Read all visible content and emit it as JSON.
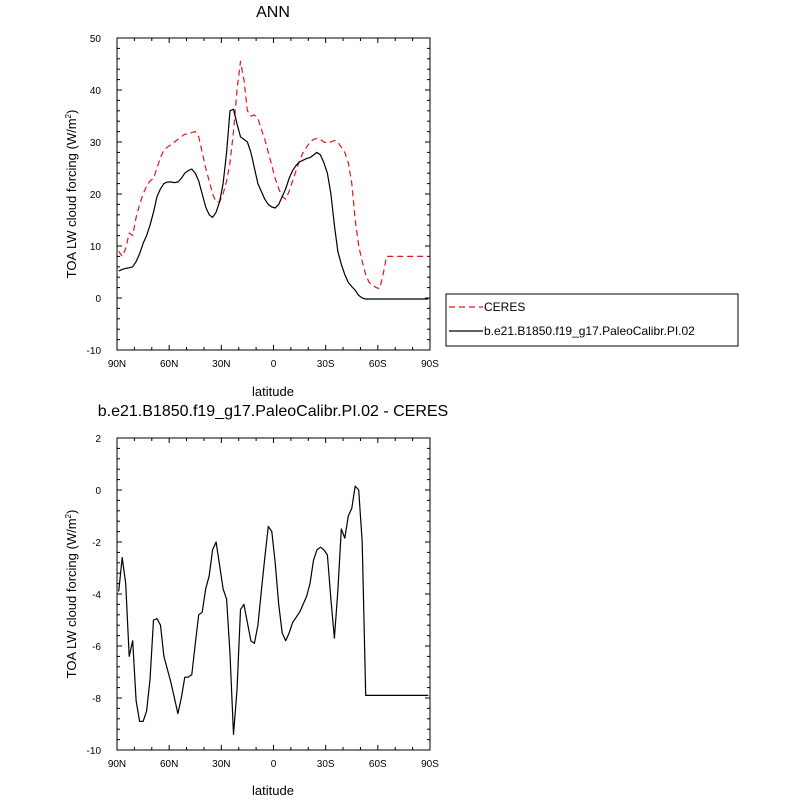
{
  "chart_data": [
    {
      "type": "line",
      "title": "ANN",
      "xlabel": "latitude",
      "ylabel": "TOA LW cloud forcing (W/m",
      "ylabel_sup": "2",
      "ylabel_close": ")",
      "xlim": [
        90,
        -90
      ],
      "ylim": [
        -10,
        50
      ],
      "x_ticks": [
        {
          "v": 90,
          "label": "90N"
        },
        {
          "v": 60,
          "label": "60N"
        },
        {
          "v": 30,
          "label": "30N"
        },
        {
          "v": 0,
          "label": "0"
        },
        {
          "v": -30,
          "label": "30S"
        },
        {
          "v": -60,
          "label": "60S"
        },
        {
          "v": -90,
          "label": "90S"
        }
      ],
      "y_ticks": [
        -10,
        0,
        10,
        20,
        30,
        40,
        50
      ],
      "legend": {
        "placement": "right"
      },
      "series": [
        {
          "name": "CERES",
          "color": "#e8141b",
          "style": "dashed",
          "x": [
            89,
            87,
            85,
            83,
            81,
            79,
            77,
            75,
            73,
            71,
            69,
            67,
            65,
            63,
            61,
            59,
            57,
            55,
            53,
            51,
            49,
            47,
            45,
            43,
            41,
            39,
            37,
            35,
            33,
            31,
            29,
            27,
            25,
            23,
            21,
            19,
            17,
            15,
            13,
            11,
            9,
            7,
            5,
            3,
            1,
            -1,
            -3,
            -5,
            -7,
            -9,
            -11,
            -13,
            -15,
            -17,
            -19,
            -21,
            -23,
            -25,
            -27,
            -29,
            -31,
            -33,
            -35,
            -37,
            -39,
            -41,
            -43,
            -45,
            -47,
            -49,
            -51,
            -53,
            -55,
            -57,
            -59,
            -61,
            -63,
            -65,
            -67,
            -69,
            -71,
            -73,
            -75,
            -77,
            -79,
            -81,
            -83,
            -85,
            -87,
            -89
          ],
          "y": [
            9.0,
            8.0,
            9.5,
            12.5,
            12.0,
            15.5,
            18.0,
            20.0,
            21.5,
            22.5,
            23.0,
            25.0,
            27.0,
            28.5,
            29.0,
            29.5,
            30.0,
            30.5,
            31.0,
            31.5,
            31.5,
            31.8,
            32.0,
            31.0,
            28.0,
            25.0,
            22.5,
            20.0,
            18.5,
            18.5,
            20.0,
            22.5,
            26.0,
            32.0,
            40.0,
            45.5,
            42.0,
            36.0,
            35.0,
            35.2,
            34.5,
            32.5,
            30.5,
            28.0,
            25.5,
            23.0,
            21.0,
            19.5,
            19.0,
            20.5,
            22.5,
            24.5,
            26.5,
            28.0,
            29.0,
            30.0,
            30.5,
            30.7,
            30.5,
            30.0,
            29.8,
            30.0,
            30.3,
            30.0,
            29.0,
            28.0,
            26.0,
            22.0,
            15.0,
            10.0,
            7.0,
            4.5,
            3.0,
            2.5,
            2.0,
            1.8,
            4.5,
            8.0,
            8.0,
            8.0,
            8.0,
            8.0,
            8.0,
            8.0,
            8.0,
            8.0,
            8.0,
            8.0,
            8.0,
            8.0
          ]
        },
        {
          "name": "b.e21.B1850.f19_g17.PaleoCalibr.PI.02",
          "color": "#000000",
          "style": "solid",
          "x": [
            89,
            87,
            85,
            83,
            81,
            79,
            77,
            75,
            73,
            71,
            69,
            67,
            65,
            63,
            61,
            59,
            57,
            55,
            53,
            51,
            49,
            47,
            45,
            43,
            41,
            39,
            37,
            35,
            33,
            31,
            29,
            27,
            25,
            23,
            21,
            19,
            17,
            15,
            13,
            11,
            9,
            7,
            5,
            3,
            1,
            -1,
            -3,
            -5,
            -7,
            -9,
            -11,
            -13,
            -15,
            -17,
            -19,
            -21,
            -23,
            -25,
            -27,
            -29,
            -31,
            -33,
            -35,
            -37,
            -39,
            -41,
            -43,
            -45,
            -47,
            -49,
            -51,
            -53,
            -55,
            -57,
            -59,
            -61,
            -63,
            -65,
            -67,
            -69,
            -71,
            -73,
            -75,
            -77,
            -79,
            -81,
            -83,
            -85,
            -87,
            -89
          ],
          "y": [
            5.2,
            5.5,
            5.7,
            5.8,
            6.0,
            7.0,
            8.5,
            10.5,
            12.0,
            14.0,
            16.5,
            19.5,
            21.0,
            22.0,
            22.3,
            22.3,
            22.2,
            22.3,
            23.0,
            24.0,
            24.5,
            24.8,
            24.0,
            22.5,
            20.0,
            17.5,
            16.0,
            15.5,
            16.5,
            18.5,
            22.0,
            28.0,
            36.0,
            36.3,
            33.5,
            31.0,
            30.5,
            30.0,
            28.0,
            25.0,
            22.0,
            20.5,
            19.0,
            18.0,
            17.5,
            17.3,
            18.0,
            19.5,
            21.0,
            23.0,
            24.5,
            25.5,
            26.2,
            26.5,
            26.8,
            27.0,
            27.5,
            28.0,
            27.5,
            26.0,
            24.0,
            20.0,
            14.0,
            9.0,
            6.5,
            4.5,
            3.0,
            2.2,
            1.5,
            0.5,
            0.0,
            -0.2,
            -0.2,
            -0.2,
            -0.2,
            -0.2,
            -0.2,
            -0.2,
            -0.2,
            -0.2,
            -0.2,
            -0.2,
            -0.2,
            -0.2,
            -0.2,
            -0.2,
            -0.2,
            -0.2,
            -0.2,
            -0.2
          ]
        }
      ]
    },
    {
      "type": "line",
      "title": "b.e21.B1850.f19_g17.PaleoCalibr.PI.02 - CERES",
      "xlabel": "latitude",
      "ylabel": "TOA LW cloud forcing (W/m",
      "ylabel_sup": "2",
      "ylabel_close": ")",
      "xlim": [
        90,
        -90
      ],
      "ylim": [
        -10,
        2
      ],
      "x_ticks": [
        {
          "v": 90,
          "label": "90N"
        },
        {
          "v": 60,
          "label": "60N"
        },
        {
          "v": 30,
          "label": "30N"
        },
        {
          "v": 0,
          "label": "0"
        },
        {
          "v": -30,
          "label": "30S"
        },
        {
          "v": -60,
          "label": "60S"
        },
        {
          "v": -90,
          "label": "90S"
        }
      ],
      "y_ticks": [
        -10,
        -8,
        -6,
        -4,
        -2,
        0,
        2
      ],
      "series": [
        {
          "color": "#000000",
          "style": "solid",
          "x": [
            89,
            87,
            85,
            83,
            81,
            79,
            77,
            75,
            73,
            71,
            69,
            67,
            65,
            63,
            61,
            59,
            57,
            55,
            53,
            51,
            49,
            47,
            45,
            43,
            41,
            39,
            37,
            35,
            33,
            31,
            29,
            27,
            25,
            23,
            21,
            19,
            17,
            15,
            13,
            11,
            9,
            7,
            5,
            3,
            1,
            -1,
            -3,
            -5,
            -7,
            -9,
            -11,
            -13,
            -15,
            -17,
            -19,
            -21,
            -23,
            -25,
            -27,
            -29,
            -31,
            -33,
            -35,
            -37,
            -39,
            -41,
            -43,
            -45,
            -47,
            -49,
            -51,
            -53,
            -55,
            -57,
            -59,
            -61,
            -63,
            -65,
            -67,
            -69,
            -71,
            -73,
            -75,
            -77,
            -79,
            -81,
            -83,
            -85,
            -87,
            -89
          ],
          "y": [
            -3.9,
            -2.6,
            -3.6,
            -6.4,
            -5.8,
            -8.1,
            -8.9,
            -8.9,
            -8.5,
            -7.3,
            -5.0,
            -4.95,
            -5.2,
            -6.4,
            -6.9,
            -7.4,
            -8.0,
            -8.6,
            -8.0,
            -7.2,
            -7.2,
            -7.1,
            -5.9,
            -4.8,
            -4.7,
            -3.8,
            -3.3,
            -2.3,
            -2.0,
            -2.9,
            -3.8,
            -4.2,
            -6.3,
            -9.4,
            -7.7,
            -4.6,
            -4.4,
            -5.1,
            -5.8,
            -5.9,
            -5.2,
            -3.9,
            -2.6,
            -1.4,
            -1.6,
            -2.8,
            -4.4,
            -5.5,
            -5.8,
            -5.5,
            -5.1,
            -4.9,
            -4.7,
            -4.4,
            -4.1,
            -3.6,
            -2.7,
            -2.3,
            -2.2,
            -2.3,
            -2.5,
            -4.2,
            -5.7,
            -3.9,
            -1.5,
            -1.85,
            -1.0,
            -0.7,
            0.15,
            0.0,
            -2.0,
            -7.9,
            -7.9,
            -7.9,
            -7.9,
            -7.9,
            -7.9,
            -7.9,
            -7.9,
            -7.9,
            -7.9,
            -7.9,
            -7.9,
            -7.9,
            -7.9,
            -7.9,
            -7.9,
            -7.9,
            -7.9,
            -7.9
          ]
        }
      ]
    }
  ]
}
